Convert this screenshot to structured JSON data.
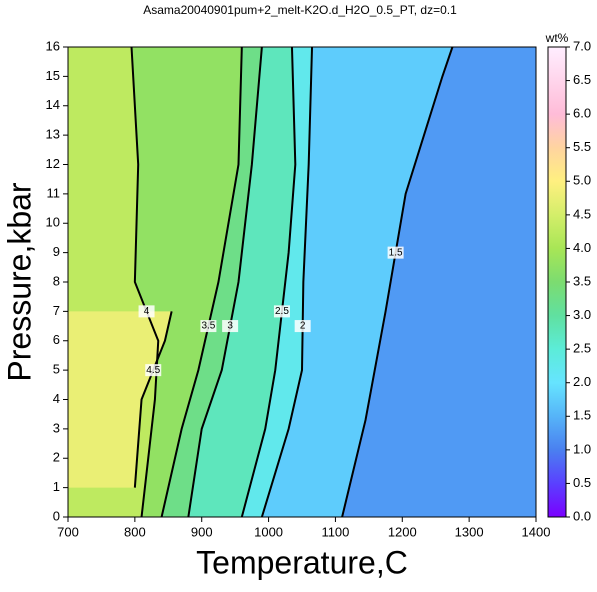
{
  "chart_data": {
    "type": "contour",
    "title": "Asama20040901pum+2_melt-K2O.d_H2O_0.5_PT, dz=0.1",
    "x_label": "Temperature,C",
    "y_label": "Pressure,kbar",
    "xlim": [
      700,
      1400
    ],
    "xticks": [
      700,
      800,
      900,
      1000,
      1100,
      1200,
      1300,
      1400
    ],
    "ylim": [
      0,
      16
    ],
    "yticks": [
      0,
      1,
      2,
      3,
      4,
      5,
      6,
      7,
      8,
      9,
      10,
      11,
      12,
      13,
      14,
      15,
      16
    ],
    "colorbar_label": "wt%",
    "clim": [
      0,
      7
    ],
    "cticks": [
      {
        "value": 0,
        "label": "0.0"
      },
      {
        "value": 0.5,
        "label": "0.5"
      },
      {
        "value": 1,
        "label": "1.0"
      },
      {
        "value": 1.5,
        "label": "1.5"
      },
      {
        "value": 2,
        "label": "2.0"
      },
      {
        "value": 2.5,
        "label": "2.5"
      },
      {
        "value": 3,
        "label": "3.0"
      },
      {
        "value": 3.5,
        "label": "3.5"
      },
      {
        "value": 4,
        "label": "4.0"
      },
      {
        "value": 4.5,
        "label": "4.5"
      },
      {
        "value": 5,
        "label": "5.0"
      },
      {
        "value": 5.5,
        "label": "5.5"
      },
      {
        "value": 6,
        "label": "6.0"
      },
      {
        "value": 6.5,
        "label": "6.5"
      },
      {
        "value": 7,
        "label": "7.0"
      }
    ],
    "colormap": [
      {
        "value": 0,
        "color": "#7a00ff"
      },
      {
        "value": 0.5,
        "color": "#5a40ff"
      },
      {
        "value": 1,
        "color": "#4a80f0"
      },
      {
        "value": 1.5,
        "color": "#56b4f8"
      },
      {
        "value": 2,
        "color": "#66e4ff"
      },
      {
        "value": 2.5,
        "color": "#5cecd8"
      },
      {
        "value": 3,
        "color": "#60e0a0"
      },
      {
        "value": 3.5,
        "color": "#7cdc70"
      },
      {
        "value": 4,
        "color": "#a8e656"
      },
      {
        "value": 4.5,
        "color": "#d4ee6a"
      },
      {
        "value": 5,
        "color": "#fff080"
      },
      {
        "value": 5.5,
        "color": "#ffd4a0"
      },
      {
        "value": 6,
        "color": "#ffbcd8"
      },
      {
        "value": 7,
        "color": "#ffeeff"
      }
    ],
    "contours": [
      {
        "level": 1.5,
        "T": [
          1110,
          1145,
          1175,
          1205,
          1260,
          1275
        ],
        "P": [
          0,
          3.3,
          7,
          11,
          15,
          16
        ]
      },
      {
        "level": 2,
        "T": [
          990,
          1030,
          1050,
          1052,
          1060,
          1065
        ],
        "P": [
          0,
          3,
          5,
          8,
          12,
          16
        ]
      },
      {
        "level": 2.5,
        "T": [
          960,
          995,
          1010,
          1030,
          1040,
          1035
        ],
        "P": [
          0,
          3,
          5,
          9,
          12,
          16
        ]
      },
      {
        "level": 3,
        "T": [
          880,
          900,
          930,
          955,
          975,
          990
        ],
        "P": [
          0,
          3,
          5,
          8,
          12,
          16
        ]
      },
      {
        "level": 3.5,
        "T": [
          840,
          870,
          895,
          925,
          955,
          960
        ],
        "P": [
          0,
          3,
          5,
          8,
          12,
          16
        ]
      },
      {
        "level": 4,
        "T": [
          810,
          830,
          835,
          800,
          805,
          795
        ],
        "P": [
          0,
          4,
          6,
          8,
          12,
          16
        ]
      },
      {
        "level": 4.5,
        "T": [
          800,
          810,
          845,
          855
        ],
        "P": [
          1,
          4,
          6,
          7
        ]
      }
    ]
  }
}
